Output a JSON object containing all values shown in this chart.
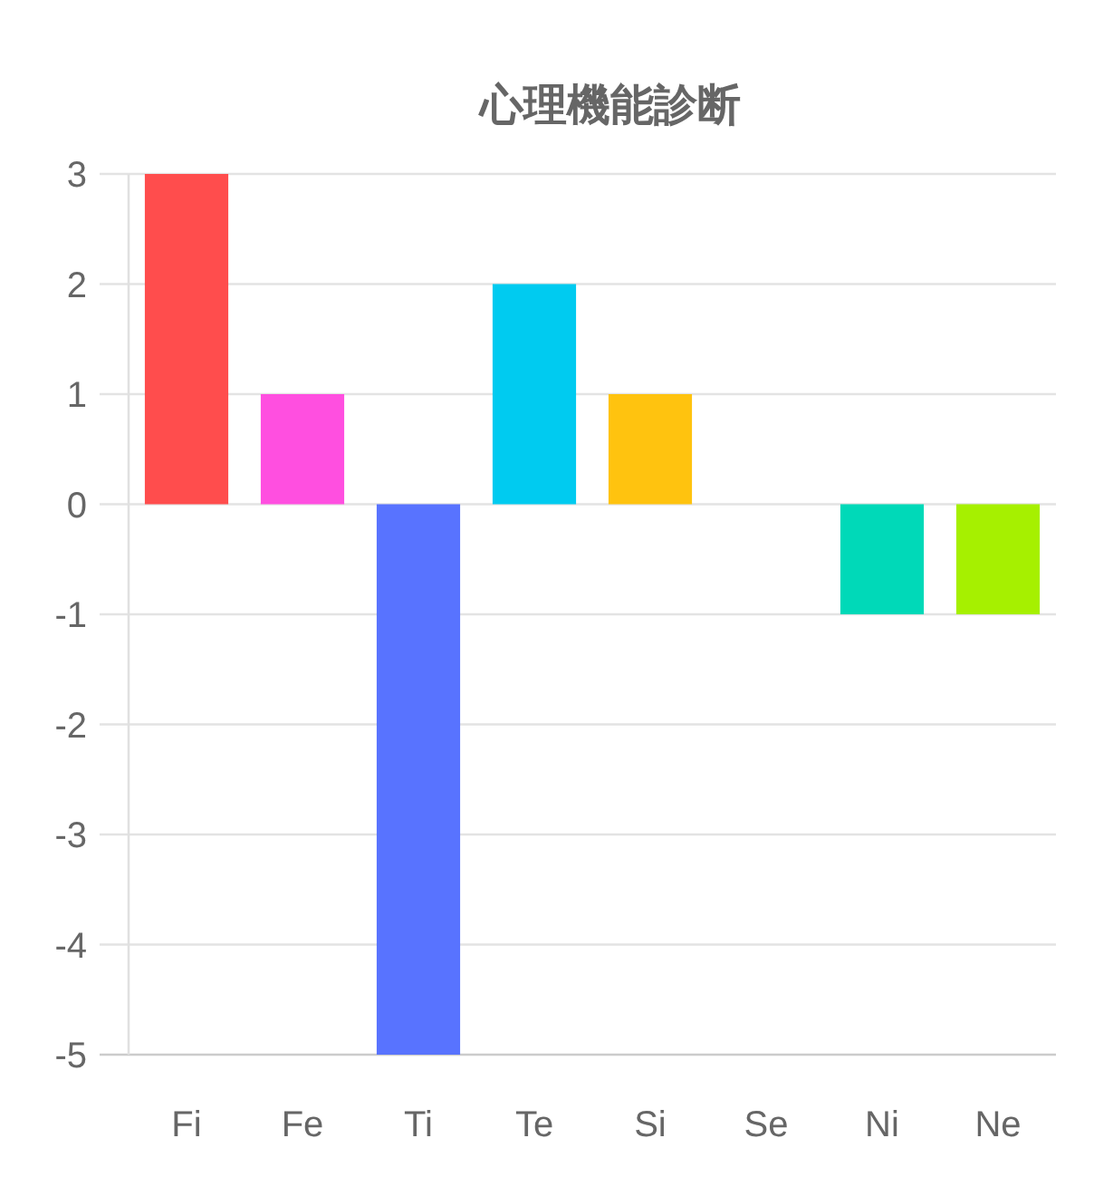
{
  "chart_data": {
    "type": "bar",
    "title": "心理機能診断",
    "categories": [
      "Fi",
      "Fe",
      "Ti",
      "Te",
      "Si",
      "Se",
      "Ni",
      "Ne"
    ],
    "values": [
      3,
      1,
      -5,
      2,
      1,
      0,
      -1,
      -1
    ],
    "colors": [
      "#ff4d4d",
      "#ff4fe0",
      "#5873ff",
      "#00cbf0",
      "#ffc30f",
      "#9e9e9e",
      "#00d9b8",
      "#a6f000"
    ],
    "ylim": [
      -5,
      3
    ],
    "yticks": [
      -5,
      -4,
      -3,
      -2,
      -1,
      0,
      1,
      2,
      3
    ],
    "grid": "y"
  }
}
